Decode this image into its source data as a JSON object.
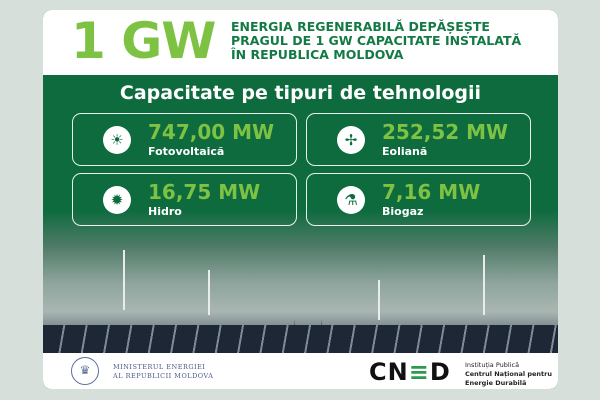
{
  "header": {
    "big": "1 GW",
    "title": "ENERGIA REGENERABILĂ DEPĂȘEȘTE\nPRAGUL DE 1 GW CAPACITATE INSTALATĂ\nÎN REPUBLICA MOLDOVA"
  },
  "subtitle": "Capacitate pe tipuri de tehnologii",
  "items": [
    {
      "value": "747,00 MW",
      "label": "Fotovoltaică",
      "icon": "solar-panel-icon"
    },
    {
      "value": "252,52 MW",
      "label": "Eoliană",
      "icon": "wind-turbine-icon"
    },
    {
      "value": "16,75 MW",
      "label": "Hidro",
      "icon": "hydro-wheel-icon"
    },
    {
      "value": "7,16 MW",
      "label": "Biogaz",
      "icon": "biogas-plant-icon"
    }
  ],
  "footer": {
    "ministry": "MINISTERUL ENERGIEI\nAL REPUBLICII MOLDOVA",
    "logo": "CNED",
    "inst1": "Instituția Publică",
    "inst2": "Centrul Național pentru",
    "inst3": "Energie Durabilă"
  },
  "colors": {
    "green": "#0d6b3e",
    "lime": "#7dc242",
    "background": "#d6dfda"
  }
}
